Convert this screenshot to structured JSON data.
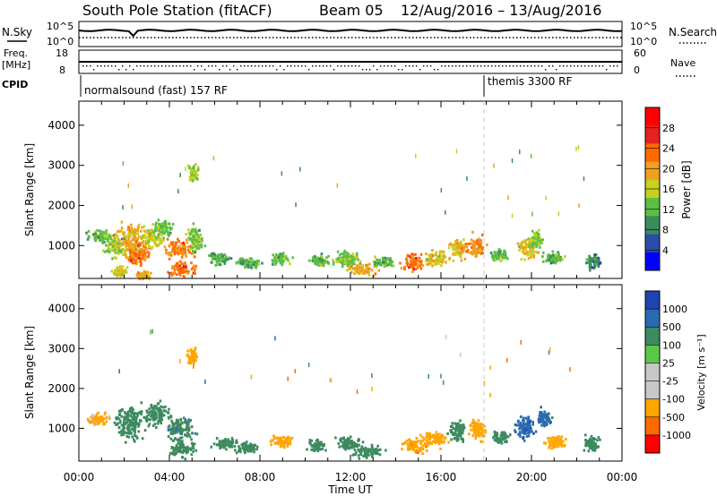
{
  "header": {
    "title_station": "South Pole Station (fitACF)",
    "title_beam": "Beam 05",
    "title_dates": "12/Aug/2016 – 13/Aug/2016"
  },
  "top_panels": {
    "nsky_label": "N.Sky",
    "nsearch_label": "N.Search",
    "nsky_ticks": [
      "10^5",
      "10^0"
    ],
    "nsearch_ticks": [
      "10^5",
      "10^0"
    ],
    "freq_label": "Freq.",
    "freq_unit": "[MHz]",
    "freq_ticks": [
      "18",
      "8"
    ],
    "nave_label": "Nave",
    "nave_ticks": [
      "60",
      "0"
    ],
    "cpid_label": "CPID",
    "cpid_segments": [
      "normalsound (fast) 157 RF",
      "themis 3300 RF"
    ]
  },
  "colors": {
    "power": [
      "#0000ff",
      "#2a4ea8",
      "#3d8a5f",
      "#5bbf45",
      "#c8d020",
      "#f0a020",
      "#ff6a00",
      "#e82020",
      "#ff0000"
    ],
    "velocity": [
      "#ff0000",
      "#ff6a00",
      "#ffa500",
      "#c8c8c8",
      "#c8c8c8",
      "#5cc84a",
      "#3d8a5f",
      "#2a6ab0",
      "#2044b0"
    ]
  },
  "chart_data": [
    {
      "type": "heatmap",
      "name": "power",
      "xlabel": "",
      "ylabel": "Slant Range [km]",
      "ylim": [
        180,
        4600
      ],
      "yticks": [
        "1000",
        "2000",
        "3000",
        "4000"
      ],
      "colorbar_label": "Power [dB]",
      "colorbar_ticks": [
        "4",
        "8",
        "12",
        "16",
        "20",
        "24",
        "28"
      ],
      "colorbar_range": [
        0,
        32
      ],
      "blobs": [
        {
          "t": 0.9,
          "r": 1250,
          "w": 0.8,
          "h": 220,
          "v": 14
        },
        {
          "t": 1.6,
          "r": 1000,
          "w": 0.6,
          "h": 350,
          "v": 16
        },
        {
          "t": 2.3,
          "r": 1100,
          "w": 0.9,
          "h": 600,
          "v": 21
        },
        {
          "t": 2.6,
          "r": 800,
          "w": 0.7,
          "h": 400,
          "v": 25
        },
        {
          "t": 3.2,
          "r": 1300,
          "w": 0.6,
          "h": 400,
          "v": 18
        },
        {
          "t": 3.7,
          "r": 1450,
          "w": 0.5,
          "h": 300,
          "v": 14
        },
        {
          "t": 4.4,
          "r": 950,
          "w": 0.9,
          "h": 300,
          "v": 24
        },
        {
          "t": 4.5,
          "r": 450,
          "w": 0.8,
          "h": 250,
          "v": 26
        },
        {
          "t": 5.1,
          "r": 1200,
          "w": 0.5,
          "h": 450,
          "v": 15
        },
        {
          "t": 5.0,
          "r": 2800,
          "w": 0.3,
          "h": 300,
          "v": 17
        },
        {
          "t": 1.8,
          "r": 350,
          "w": 0.5,
          "h": 200,
          "v": 20
        },
        {
          "t": 2.8,
          "r": 300,
          "w": 0.4,
          "h": 150,
          "v": 22
        },
        {
          "t": 6.2,
          "r": 700,
          "w": 0.7,
          "h": 200,
          "v": 12
        },
        {
          "t": 7.4,
          "r": 600,
          "w": 0.8,
          "h": 200,
          "v": 13
        },
        {
          "t": 8.9,
          "r": 700,
          "w": 0.6,
          "h": 220,
          "v": 14
        },
        {
          "t": 10.6,
          "r": 650,
          "w": 0.6,
          "h": 200,
          "v": 13
        },
        {
          "t": 11.8,
          "r": 700,
          "w": 0.8,
          "h": 280,
          "v": 15
        },
        {
          "t": 12.4,
          "r": 450,
          "w": 0.9,
          "h": 200,
          "v": 22
        },
        {
          "t": 13.4,
          "r": 600,
          "w": 0.6,
          "h": 200,
          "v": 14
        },
        {
          "t": 14.7,
          "r": 600,
          "w": 0.6,
          "h": 300,
          "v": 26
        },
        {
          "t": 15.8,
          "r": 700,
          "w": 0.8,
          "h": 250,
          "v": 20
        },
        {
          "t": 16.7,
          "r": 950,
          "w": 0.6,
          "h": 350,
          "v": 21
        },
        {
          "t": 17.5,
          "r": 1000,
          "w": 0.5,
          "h": 380,
          "v": 24
        },
        {
          "t": 18.5,
          "r": 800,
          "w": 0.5,
          "h": 250,
          "v": 14
        },
        {
          "t": 19.8,
          "r": 950,
          "w": 0.6,
          "h": 350,
          "v": 20
        },
        {
          "t": 20.2,
          "r": 1200,
          "w": 0.4,
          "h": 300,
          "v": 16
        },
        {
          "t": 20.9,
          "r": 700,
          "w": 0.6,
          "h": 250,
          "v": 13
        },
        {
          "t": 22.7,
          "r": 600,
          "w": 0.5,
          "h": 250,
          "v": 10
        }
      ]
    },
    {
      "type": "heatmap",
      "name": "velocity",
      "xlabel": "Time UT",
      "ylabel": "Slant Range [km]",
      "ylim": [
        180,
        4600
      ],
      "yticks": [
        "1000",
        "2000",
        "3000",
        "4000"
      ],
      "xticks": [
        "00:00",
        "04:00",
        "08:00",
        "12:00",
        "16:00",
        "20:00",
        "00:00"
      ],
      "xlim": [
        0,
        24
      ],
      "colorbar_label": "Velocity [m s⁻¹]",
      "colorbar_ticks": [
        "1000",
        "500",
        "100",
        "25",
        "-25",
        "-100",
        "-500",
        "-1000"
      ],
      "colorbar_range": [
        -1200,
        1200
      ],
      "blobs": [
        {
          "t": 0.8,
          "r": 1250,
          "w": 0.7,
          "h": 220,
          "v": -150
        },
        {
          "t": 2.2,
          "r": 1200,
          "w": 0.9,
          "h": 600,
          "v": 300
        },
        {
          "t": 3.4,
          "r": 1400,
          "w": 0.8,
          "h": 400,
          "v": 250
        },
        {
          "t": 4.4,
          "r": 1000,
          "w": 0.9,
          "h": 400,
          "v": 400
        },
        {
          "t": 4.5,
          "r": 500,
          "w": 0.8,
          "h": 250,
          "v": 300
        },
        {
          "t": 5.0,
          "r": 2800,
          "w": 0.3,
          "h": 300,
          "v": -200
        },
        {
          "t": 6.4,
          "r": 650,
          "w": 0.7,
          "h": 200,
          "v": 200
        },
        {
          "t": 7.4,
          "r": 550,
          "w": 0.8,
          "h": 200,
          "v": 250
        },
        {
          "t": 9.0,
          "r": 700,
          "w": 0.7,
          "h": 220,
          "v": -300
        },
        {
          "t": 10.5,
          "r": 600,
          "w": 0.6,
          "h": 200,
          "v": 250
        },
        {
          "t": 11.9,
          "r": 650,
          "w": 0.8,
          "h": 250,
          "v": 220
        },
        {
          "t": 12.7,
          "r": 450,
          "w": 0.9,
          "h": 200,
          "v": 200
        },
        {
          "t": 14.8,
          "r": 600,
          "w": 0.7,
          "h": 280,
          "v": -400
        },
        {
          "t": 15.7,
          "r": 750,
          "w": 0.8,
          "h": 250,
          "v": -250
        },
        {
          "t": 16.7,
          "r": 950,
          "w": 0.5,
          "h": 350,
          "v": 250
        },
        {
          "t": 17.6,
          "r": 1000,
          "w": 0.5,
          "h": 380,
          "v": -200
        },
        {
          "t": 18.6,
          "r": 800,
          "w": 0.5,
          "h": 250,
          "v": 300
        },
        {
          "t": 19.7,
          "r": 1050,
          "w": 0.6,
          "h": 350,
          "v": 800
        },
        {
          "t": 20.5,
          "r": 1300,
          "w": 0.4,
          "h": 300,
          "v": 700
        },
        {
          "t": 21.0,
          "r": 700,
          "w": 0.6,
          "h": 250,
          "v": -300
        },
        {
          "t": 22.6,
          "r": 650,
          "w": 0.5,
          "h": 250,
          "v": 200
        }
      ]
    }
  ]
}
